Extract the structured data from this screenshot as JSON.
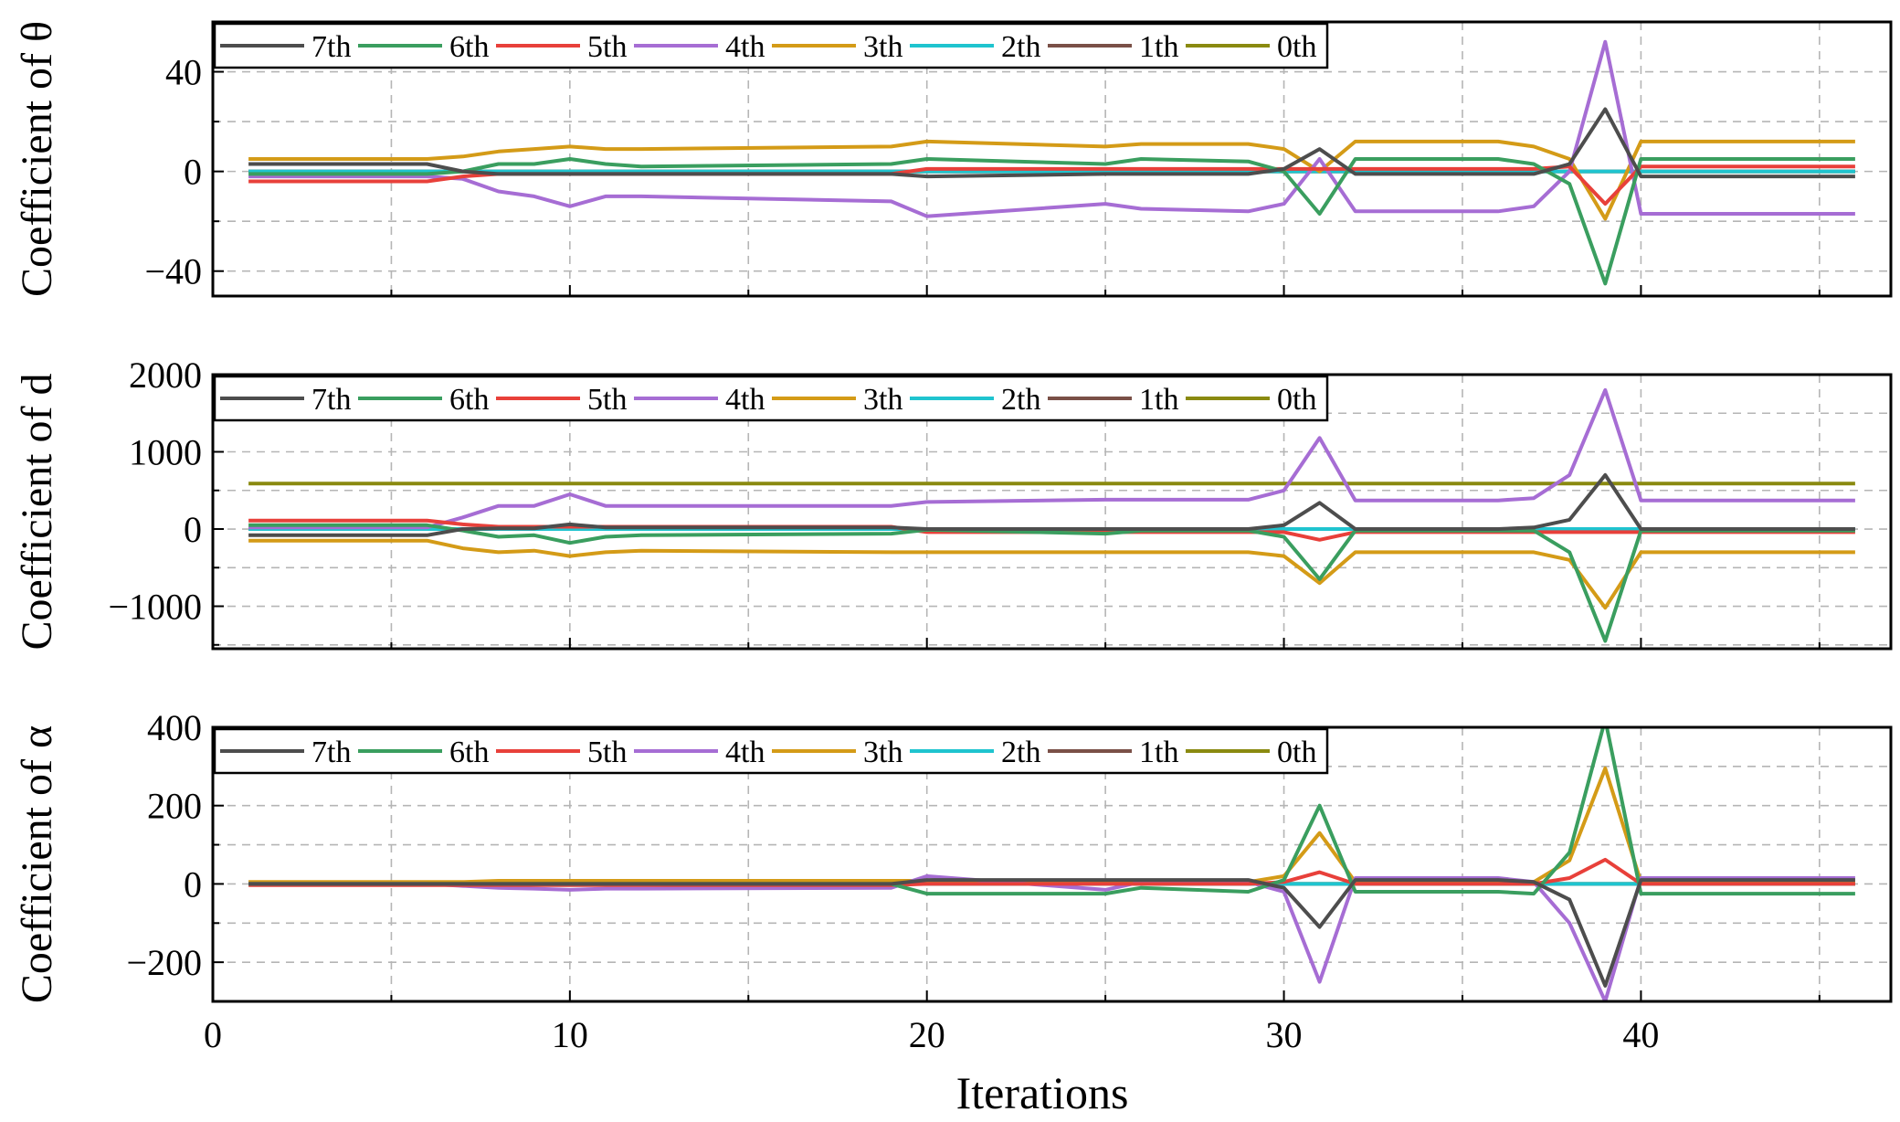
{
  "figure": {
    "xlabel": "Iterations",
    "series_names": [
      "7th",
      "6th",
      "5th",
      "4th",
      "3th",
      "2th",
      "1th",
      "0th"
    ],
    "series_colors": [
      "#4d4d4d",
      "#3a9e5f",
      "#e8403a",
      "#a66dd4",
      "#d49b17",
      "#1fc4cf",
      "#7a5047",
      "#8a8a10"
    ]
  },
  "chart_data": [
    {
      "type": "line",
      "ylabel": "Coefficient of θ",
      "xlabel": "",
      "xlim": [
        0,
        47
      ],
      "ylim": [
        -50,
        60
      ],
      "yticks": [
        -40,
        0,
        40
      ],
      "ytick_labels": [
        "−40",
        "0",
        "40"
      ],
      "xticks": [
        0,
        10,
        20,
        30,
        40
      ],
      "xtick_labels": [],
      "grid": true,
      "legend": "top-left",
      "x": [
        1,
        6,
        7,
        8,
        9,
        10,
        11,
        12,
        19,
        20,
        25,
        26,
        29,
        30,
        31,
        32,
        36,
        37,
        38,
        39,
        40,
        44,
        46
      ],
      "series": [
        {
          "name": "7th",
          "values": [
            3,
            3,
            0,
            -1,
            -1,
            -1,
            -1,
            -1,
            -1,
            -2,
            -1,
            -1,
            -1,
            1,
            9,
            -1,
            -1,
            -1,
            3,
            25,
            -2,
            -2,
            -2
          ]
        },
        {
          "name": "6th",
          "values": [
            -1,
            -1,
            0,
            3,
            3,
            5,
            3,
            2,
            3,
            5,
            3,
            5,
            4,
            0,
            -17,
            5,
            5,
            3,
            -5,
            -45,
            5,
            5,
            5
          ]
        },
        {
          "name": "5th",
          "values": [
            -4,
            -4,
            -2,
            -1,
            -1,
            -1,
            -1,
            -1,
            -1,
            1,
            1,
            1,
            1,
            1,
            1,
            1,
            1,
            1,
            2,
            -13,
            2,
            2,
            2
          ]
        },
        {
          "name": "4th",
          "values": [
            -2,
            -2,
            -3,
            -8,
            -10,
            -14,
            -10,
            -10,
            -12,
            -18,
            -13,
            -15,
            -16,
            -13,
            5,
            -16,
            -16,
            -14,
            0,
            52,
            -17,
            -17,
            -17
          ]
        },
        {
          "name": "3th",
          "values": [
            5,
            5,
            6,
            8,
            9,
            10,
            9,
            9,
            10,
            12,
            10,
            11,
            11,
            9,
            0,
            12,
            12,
            10,
            5,
            -19,
            12,
            12,
            12
          ]
        },
        {
          "name": "2th",
          "values": [
            0,
            0,
            0,
            0,
            0,
            0,
            0,
            0,
            0,
            0,
            0,
            0,
            0,
            0,
            0,
            0,
            0,
            0,
            0,
            0,
            0,
            0,
            0
          ]
        },
        {
          "name": "1th",
          "values": [
            0,
            0,
            0,
            0,
            0,
            0,
            0,
            0,
            0,
            0,
            0,
            0,
            0,
            0,
            0,
            0,
            0,
            0,
            0,
            0,
            0,
            0,
            0
          ]
        },
        {
          "name": "0th",
          "values": [
            0,
            0,
            0,
            0,
            0,
            0,
            0,
            0,
            0,
            0,
            0,
            0,
            0,
            0,
            0,
            0,
            0,
            0,
            0,
            0,
            0,
            0,
            0
          ]
        }
      ]
    },
    {
      "type": "line",
      "ylabel": "Coefficient of d",
      "xlabel": "",
      "xlim": [
        0,
        47
      ],
      "ylim": [
        -1550,
        2000
      ],
      "yticks": [
        -1000,
        0,
        1000,
        2000
      ],
      "ytick_labels": [
        "−1000",
        "0",
        "1000",
        "2000"
      ],
      "xticks": [
        0,
        10,
        20,
        30,
        40
      ],
      "xtick_labels": [],
      "grid": true,
      "legend": "top-left",
      "x": [
        1,
        6,
        7,
        8,
        9,
        10,
        11,
        12,
        19,
        20,
        25,
        26,
        29,
        30,
        31,
        32,
        36,
        37,
        38,
        39,
        40,
        44,
        46
      ],
      "series": [
        {
          "name": "7th",
          "values": [
            -80,
            -80,
            0,
            10,
            10,
            60,
            20,
            20,
            20,
            0,
            0,
            0,
            0,
            50,
            340,
            0,
            0,
            20,
            120,
            700,
            0,
            0,
            0
          ]
        },
        {
          "name": "6th",
          "values": [
            50,
            50,
            -20,
            -100,
            -80,
            -180,
            -100,
            -80,
            -60,
            -10,
            -60,
            -20,
            -20,
            -100,
            -650,
            -20,
            -20,
            -20,
            -300,
            -1450,
            -20,
            -20,
            -20
          ]
        },
        {
          "name": "5th",
          "values": [
            110,
            110,
            60,
            30,
            30,
            30,
            30,
            30,
            30,
            -40,
            -40,
            -40,
            -40,
            -40,
            -140,
            -40,
            -40,
            -40,
            -40,
            -40,
            -40,
            -40,
            -40
          ]
        },
        {
          "name": "4th",
          "values": [
            20,
            20,
            150,
            300,
            300,
            450,
            300,
            300,
            300,
            350,
            380,
            380,
            380,
            500,
            1180,
            370,
            370,
            400,
            700,
            1800,
            370,
            370,
            370
          ]
        },
        {
          "name": "3th",
          "values": [
            -150,
            -150,
            -250,
            -300,
            -280,
            -350,
            -300,
            -280,
            -300,
            -300,
            -300,
            -300,
            -300,
            -350,
            -700,
            -300,
            -300,
            -300,
            -400,
            -1020,
            -300,
            -300,
            -300
          ]
        },
        {
          "name": "2th",
          "values": [
            0,
            0,
            0,
            0,
            0,
            0,
            0,
            0,
            0,
            0,
            0,
            0,
            0,
            0,
            0,
            0,
            0,
            0,
            0,
            0,
            0,
            0,
            0
          ]
        },
        {
          "name": "1th",
          "values": [
            0,
            0,
            0,
            0,
            0,
            0,
            0,
            0,
            0,
            0,
            0,
            0,
            0,
            0,
            0,
            0,
            0,
            0,
            0,
            0,
            0,
            0,
            0
          ]
        },
        {
          "name": "0th",
          "values": [
            590,
            590,
            590,
            590,
            590,
            590,
            590,
            590,
            590,
            590,
            590,
            590,
            590,
            590,
            590,
            590,
            590,
            590,
            590,
            590,
            590,
            590,
            590
          ]
        }
      ]
    },
    {
      "type": "line",
      "ylabel": "Coefficient of α",
      "xlabel": "Iterations",
      "xlim": [
        0,
        47
      ],
      "ylim": [
        -300,
        400
      ],
      "yticks": [
        -200,
        0,
        200,
        400
      ],
      "ytick_labels": [
        "−200",
        "0",
        "200",
        "400"
      ],
      "xticks": [
        0,
        10,
        20,
        30,
        40
      ],
      "xtick_labels": [
        "0",
        "10",
        "20",
        "30",
        "40"
      ],
      "grid": true,
      "legend": "top-left",
      "x": [
        1,
        6,
        7,
        8,
        9,
        10,
        11,
        12,
        19,
        20,
        25,
        26,
        29,
        30,
        31,
        32,
        36,
        37,
        38,
        39,
        40,
        44,
        46
      ],
      "series": [
        {
          "name": "7th",
          "values": [
            0,
            0,
            0,
            0,
            0,
            0,
            0,
            0,
            0,
            10,
            10,
            10,
            10,
            -10,
            -110,
            10,
            10,
            5,
            -40,
            -260,
            10,
            10,
            10
          ]
        },
        {
          "name": "6th",
          "values": [
            0,
            0,
            0,
            0,
            0,
            0,
            0,
            0,
            0,
            -25,
            -25,
            -10,
            -20,
            10,
            200,
            -20,
            -20,
            -25,
            80,
            420,
            -25,
            -25,
            -25
          ]
        },
        {
          "name": "5th",
          "values": [
            -3,
            -3,
            -3,
            -3,
            -3,
            -3,
            -3,
            -3,
            -3,
            0,
            0,
            0,
            0,
            5,
            30,
            0,
            0,
            0,
            15,
            62,
            0,
            0,
            0
          ]
        },
        {
          "name": "4th",
          "values": [
            0,
            0,
            -5,
            -10,
            -12,
            -15,
            -12,
            -12,
            -10,
            20,
            -15,
            5,
            5,
            -20,
            -250,
            15,
            15,
            5,
            -100,
            -300,
            15,
            15,
            15
          ]
        },
        {
          "name": "3th",
          "values": [
            5,
            5,
            5,
            8,
            8,
            8,
            8,
            8,
            8,
            8,
            8,
            5,
            5,
            20,
            130,
            5,
            5,
            5,
            60,
            295,
            5,
            5,
            5
          ]
        },
        {
          "name": "2th",
          "values": [
            0,
            0,
            0,
            0,
            0,
            0,
            0,
            0,
            0,
            0,
            0,
            0,
            0,
            0,
            0,
            0,
            0,
            0,
            0,
            0,
            0,
            0,
            0
          ]
        },
        {
          "name": "1th",
          "values": [
            0,
            0,
            0,
            0,
            0,
            0,
            0,
            0,
            0,
            0,
            0,
            0,
            0,
            0,
            0,
            0,
            0,
            0,
            0,
            0,
            0,
            0,
            0
          ]
        },
        {
          "name": "0th",
          "values": [
            0,
            0,
            0,
            0,
            0,
            0,
            0,
            0,
            0,
            0,
            0,
            0,
            0,
            0,
            0,
            0,
            0,
            0,
            0,
            0,
            0,
            0,
            0
          ]
        }
      ]
    }
  ]
}
